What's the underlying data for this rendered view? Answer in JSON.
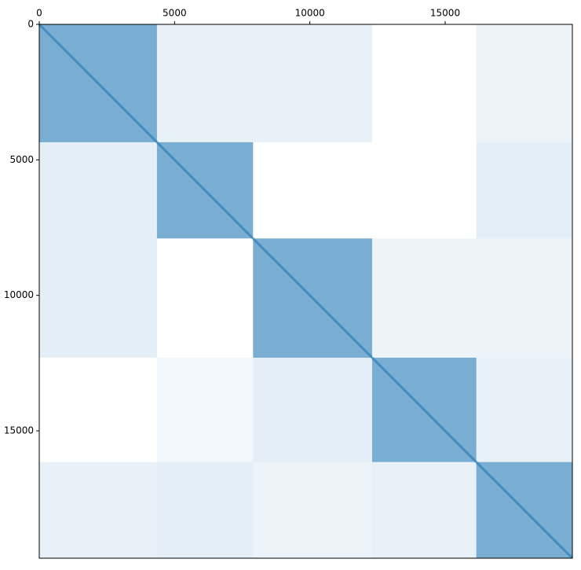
{
  "chart_data": {
    "type": "spy",
    "color": "#1f77b4",
    "xlim": [
      0,
      19700
    ],
    "ylim": [
      19700,
      0
    ],
    "xticks": [
      0,
      5000,
      10000,
      15000
    ],
    "yticks": [
      0,
      5000,
      10000,
      15000
    ],
    "block_edges": [
      0,
      4350,
      7900,
      12300,
      16150,
      19700
    ],
    "density": [
      [
        0.6,
        0.1,
        0.1,
        0,
        0.08
      ],
      [
        0.12,
        0.6,
        0,
        0,
        0.12
      ],
      [
        0.12,
        0,
        0.6,
        0.08,
        0.08
      ],
      [
        0,
        0.06,
        0.12,
        0.6,
        0.1
      ],
      [
        0.1,
        0.12,
        0.08,
        0.1,
        0.6
      ]
    ]
  }
}
